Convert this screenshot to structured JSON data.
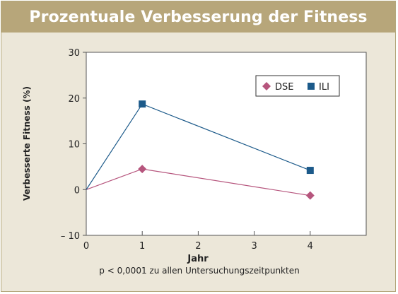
{
  "chart_data": {
    "type": "line",
    "title": "Prozentuale Verbesserung der Fitness",
    "xlabel": "Jahr",
    "ylabel": "Verbesserte Fitness (%)",
    "xlim": [
      0,
      5
    ],
    "ylim": [
      -10,
      30
    ],
    "x_ticks": [
      "0",
      "1",
      "2",
      "3",
      "4"
    ],
    "y_ticks": [
      "30",
      "20",
      "10",
      "0",
      "– 10"
    ],
    "note": "p < 0,0001 zu allen Untersuchungszeitpunkten",
    "legend_position": "top-right",
    "grid": false,
    "series": [
      {
        "name": "DSE",
        "color": "#b6557d",
        "marker": "diamond",
        "x": [
          0,
          1,
          4
        ],
        "y": [
          0,
          4.5,
          -1.3
        ]
      },
      {
        "name": "ILI",
        "color": "#1c5a8a",
        "marker": "square",
        "x": [
          0,
          1,
          4
        ],
        "y": [
          0,
          18.7,
          4.2
        ]
      }
    ]
  }
}
